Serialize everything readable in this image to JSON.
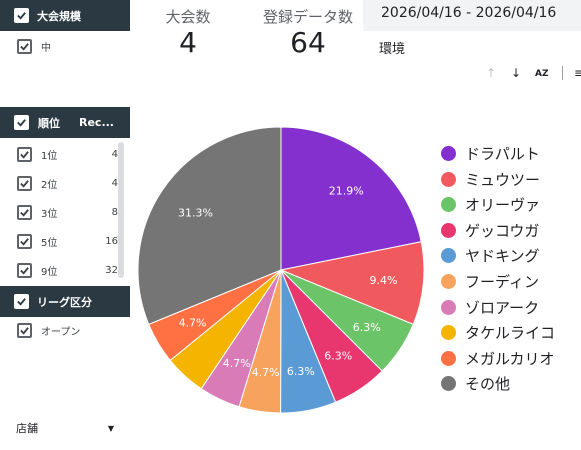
{
  "filters": {
    "scale": {
      "title": "大会規模",
      "items": [
        {
          "label": "中"
        }
      ]
    },
    "rank": {
      "title": "順位",
      "col2": "Rec...",
      "rows": [
        {
          "label": "1位",
          "value": "4"
        },
        {
          "label": "2位",
          "value": "4"
        },
        {
          "label": "3位",
          "value": "8"
        },
        {
          "label": "5位",
          "value": "16"
        },
        {
          "label": "9位",
          "value": "32"
        }
      ]
    },
    "league": {
      "title": "リーグ区分",
      "items": [
        {
          "label": "オープン"
        }
      ]
    },
    "store": {
      "label": "店舗"
    }
  },
  "kpis": {
    "tournaments": {
      "label": "大会数",
      "value": "4"
    },
    "records": {
      "label": "登録データ数",
      "value": "64"
    }
  },
  "date_range": "2026/04/16 - 2026/04/16",
  "env_label": "環境",
  "toolbar": {
    "sort_az_label": "AZ"
  },
  "chart_data": {
    "type": "pie",
    "title": "",
    "series": [
      {
        "name": "ドラパルト",
        "value": 21.9,
        "label": "21.9%",
        "color": "#8430ce"
      },
      {
        "name": "ミュウツー",
        "value": 9.4,
        "label": "9.4%",
        "color": "#f05a5e"
      },
      {
        "name": "オリーヴァ",
        "value": 6.3,
        "label": "6.3%",
        "color": "#6bc467"
      },
      {
        "name": "ゲッコウガ",
        "value": 6.3,
        "label": "6.3%",
        "color": "#e8366e"
      },
      {
        "name": "ヤドキング",
        "value": 6.3,
        "label": "6.3%",
        "color": "#5b9bd5"
      },
      {
        "name": "フーディン",
        "value": 4.7,
        "label": "4.7%",
        "color": "#f8a35d"
      },
      {
        "name": "ゾロアーク",
        "value": 4.7,
        "label": "4.7%",
        "color": "#d97bb6"
      },
      {
        "name": "タケルライコ",
        "value": 4.7,
        "label": "",
        "color": "#f4b400"
      },
      {
        "name": "メガルカリオ",
        "value": 4.7,
        "label": "4.7%",
        "color": "#ff7043"
      },
      {
        "name": "その他",
        "value": 31.3,
        "label": "31.3%",
        "color": "#757575"
      }
    ],
    "legend_position": "right"
  }
}
